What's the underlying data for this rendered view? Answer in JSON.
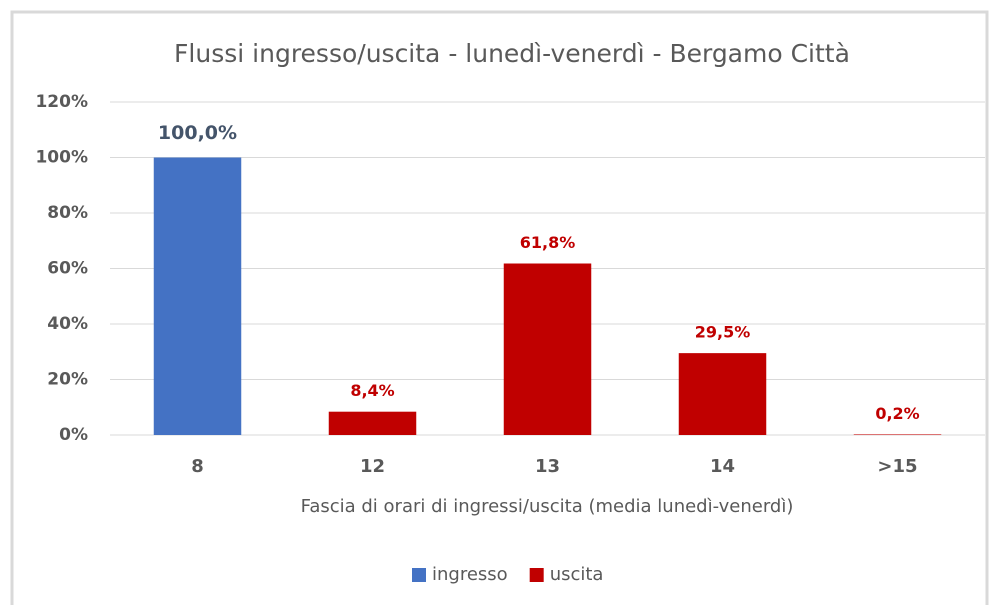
{
  "chart_data": {
    "type": "bar",
    "title": "Flussi ingresso/uscita - lunedì-venerdì - Bergamo Città",
    "x_label": "Fascia di orari di ingressi/uscita (media lunedì-venerdì)",
    "categories": [
      "8",
      "12",
      "13",
      "14",
      ">15"
    ],
    "series": [
      {
        "name": "ingresso",
        "color": "#4472c4",
        "label_color": "#44546a",
        "values": [
          100,
          null,
          null,
          null,
          null
        ],
        "value_labels": [
          "100,0%",
          null,
          null,
          null,
          null
        ]
      },
      {
        "name": "uscita",
        "color": "#c00000",
        "label_color": "#c00000",
        "values": [
          null,
          8.4,
          61.8,
          29.5,
          0.2
        ],
        "value_labels": [
          null,
          "8,4%",
          "61,8%",
          "29,5%",
          "0,2%"
        ]
      }
    ],
    "ylim": [
      0,
      120
    ],
    "yticks": [
      {
        "value": 0,
        "label": "0%"
      },
      {
        "value": 20,
        "label": "20%"
      },
      {
        "value": 40,
        "label": "40%"
      },
      {
        "value": 60,
        "label": "60%"
      },
      {
        "value": 80,
        "label": "80%"
      },
      {
        "value": 100,
        "label": "100%"
      },
      {
        "value": 120,
        "label": "120%"
      }
    ],
    "grid": true,
    "legend": "bottom"
  }
}
